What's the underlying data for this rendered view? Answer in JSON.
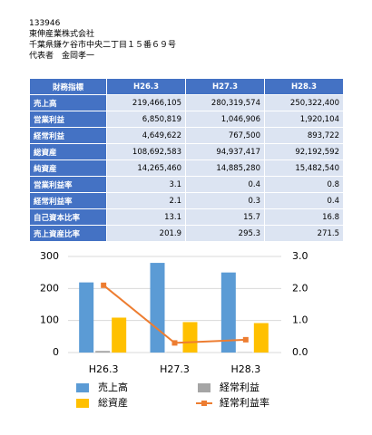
{
  "header": {
    "lines": [
      "133946",
      "東伸産業株式会社",
      "千葉県鎌ケ谷市中央二丁目１５番６９号",
      "代表者　金岡孝一"
    ]
  },
  "table": {
    "header": [
      "財務指標",
      "H26.3",
      "H27.3",
      "H28.3"
    ],
    "rows": [
      [
        "売上高",
        "219,466,105",
        "280,319,574",
        "250,322,400"
      ],
      [
        "営業利益",
        "6,850,819",
        "1,046,906",
        "1,920,104"
      ],
      [
        "経常利益",
        "4,649,622",
        "767,500",
        "893,722"
      ],
      [
        "総資産",
        "108,692,583",
        "94,937,417",
        "92,192,592"
      ],
      [
        "純資産",
        "14,265,460",
        "14,885,280",
        "15,482,540"
      ],
      [
        "営業利益率",
        "3.1",
        "0.4",
        "0.8"
      ],
      [
        "経常利益率",
        "2.1",
        "0.3",
        "0.4"
      ],
      [
        "自己資本比率",
        "13.1",
        "15.7",
        "16.8"
      ],
      [
        "売上資産比率",
        "201.9",
        "295.3",
        "271.5"
      ]
    ]
  },
  "chart_data": {
    "type": "bar",
    "categories": [
      "H26.3",
      "H27.3",
      "H28.3"
    ],
    "series": [
      {
        "name": "売上高",
        "color": "#5b9bd5",
        "values": [
          219,
          280,
          250
        ]
      },
      {
        "name": "経常利益",
        "color": "#a5a5a5",
        "values": [
          5,
          1,
          1
        ]
      },
      {
        "name": "総資産",
        "color": "#ffc000",
        "values": [
          109,
          95,
          92
        ]
      },
      {
        "name": "経常利益率",
        "color": "#ed7d31",
        "values": [
          2.1,
          0.3,
          0.4
        ],
        "axis": "y2",
        "type": "line"
      }
    ],
    "ylim": [
      0,
      300
    ],
    "yticks": [
      0,
      100,
      200,
      300
    ],
    "y2lim": [
      0,
      3
    ],
    "y2ticks": [
      {
        "value": 0,
        "label": "0.0"
      },
      {
        "value": 1,
        "label": "1.0"
      },
      {
        "value": 2,
        "label": "2.0"
      },
      {
        "value": 3,
        "label": "3.0"
      }
    ],
    "grid": true
  }
}
